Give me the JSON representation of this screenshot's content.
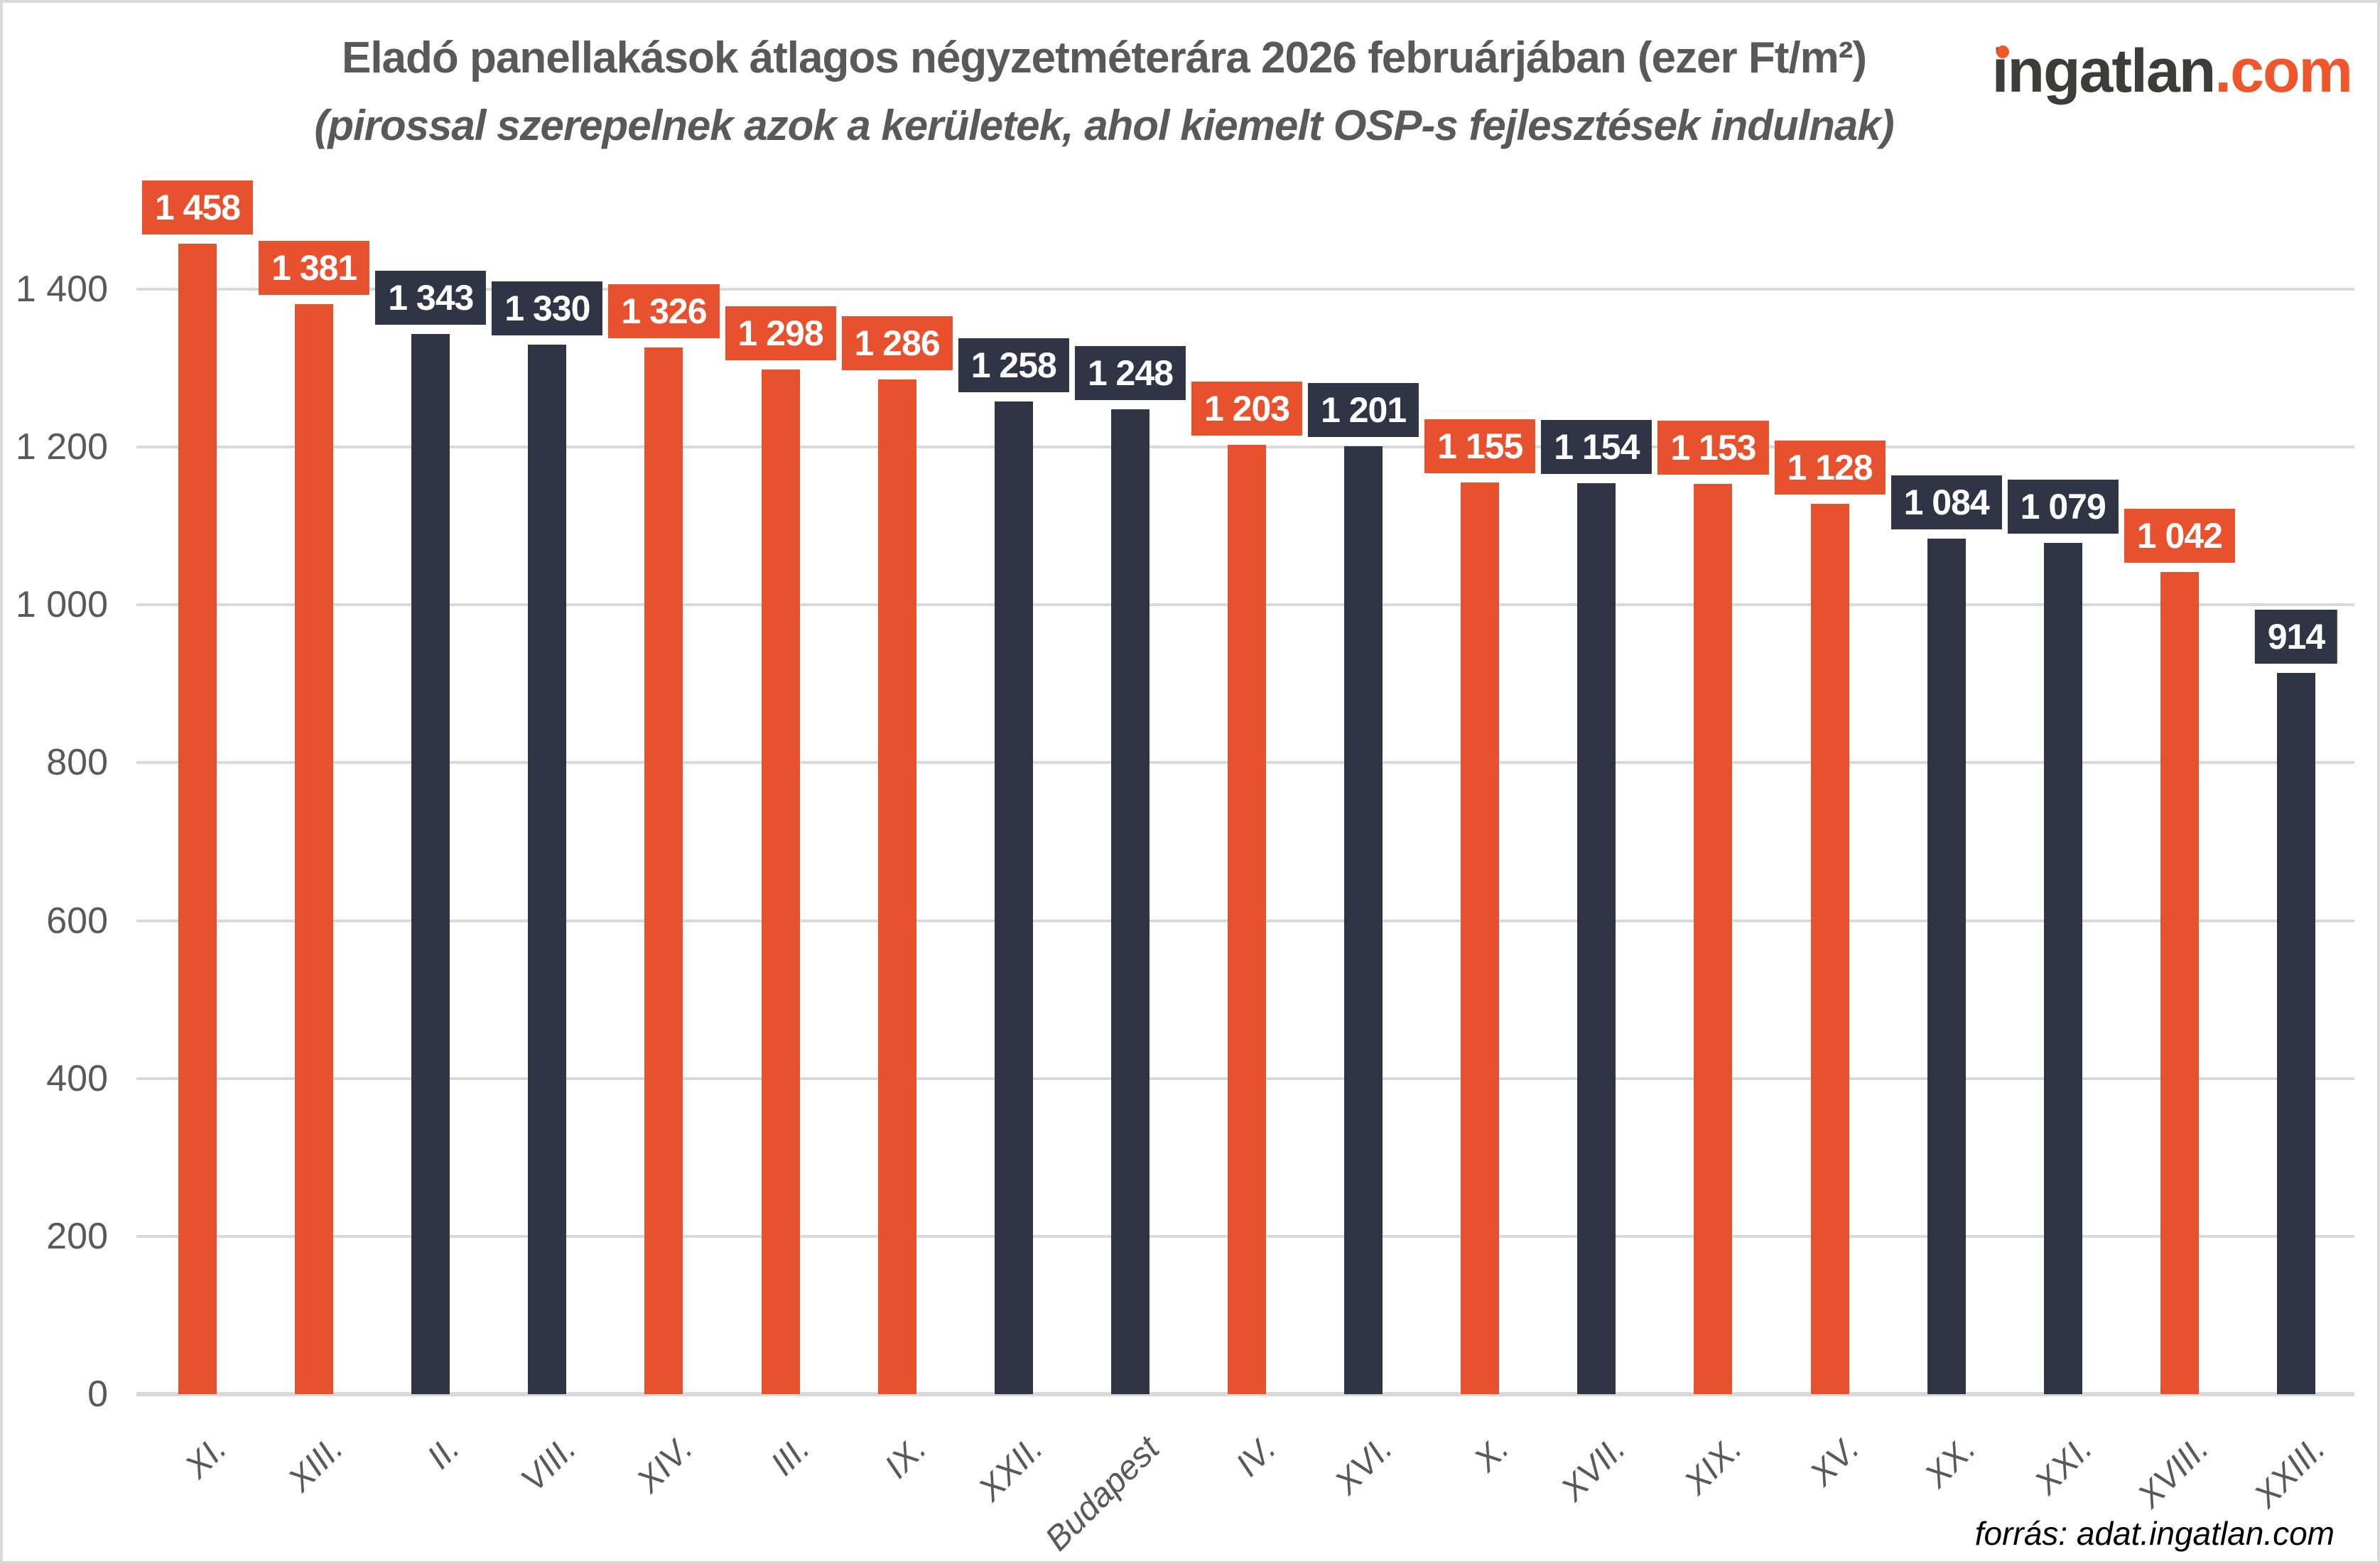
{
  "header": {
    "title": "Eladó panellakások átlagos négyzetméterára 2026 februárjában (ezer Ft/m²)",
    "subtitle": "(pirossal szerepelnek azok a kerületek, ahol kiemelt OSP-s fejlesztések indulnak)"
  },
  "logo": {
    "primary": "ingatlan",
    "suffix": ".com"
  },
  "source_note": "forrás: adat.ingatlan.com",
  "colors": {
    "highlight_red": "#E8512E",
    "dark_navy": "#2F3545",
    "gridline": "#D9D9D9",
    "frame": "#D9D9D9",
    "axis_text": "#595959",
    "title_text": "#595959",
    "value_label_text": "#FFFFFF",
    "source_text": "#000000",
    "logo_dark": "#3C3C3B",
    "logo_orange": "#F0562C"
  },
  "chart_data": {
    "type": "bar",
    "title": "Eladó panellakások átlagos négyzetméterára 2026 februárjában (ezer Ft/m²)",
    "subtitle": "(pirossal szerepelnek azok a kerületek, ahol kiemelt OSP-s fejlesztések indulnak)",
    "unit": "ezer Ft/m²",
    "categories": [
      "XI.",
      "XIII.",
      "II.",
      "VIII.",
      "XIV.",
      "III.",
      "IX.",
      "XXII.",
      "Budapest",
      "IV.",
      "XVI.",
      "X.",
      "XVII.",
      "XIX.",
      "XV.",
      "XX.",
      "XXI.",
      "XVIII.",
      "XXIII."
    ],
    "values": [
      1458,
      1381,
      1343,
      1330,
      1326,
      1298,
      1286,
      1258,
      1248,
      1203,
      1201,
      1155,
      1154,
      1153,
      1128,
      1084,
      1079,
      1042,
      914
    ],
    "value_labels": [
      "1 458",
      "1 381",
      "1 343",
      "1 330",
      "1 326",
      "1 298",
      "1 286",
      "1 258",
      "1 248",
      "1 203",
      "1 201",
      "1 155",
      "1 154",
      "1 153",
      "1 128",
      "1 084",
      "1 079",
      "1 042",
      "914"
    ],
    "highlighted": [
      true,
      true,
      false,
      false,
      true,
      true,
      true,
      false,
      false,
      true,
      false,
      true,
      false,
      true,
      true,
      false,
      false,
      true,
      false
    ],
    "highlight_meaning": "piros = kerületek, ahol kiemelt OSP-s fejlesztések indulnak",
    "xlabel": "",
    "ylabel": "",
    "ylim": [
      0,
      1400
    ],
    "ytick_interval": 200,
    "ytick_labels": [
      "0",
      "200",
      "400",
      "600",
      "800",
      "1 000",
      "1 200",
      "1 400"
    ],
    "grid": "horizontal",
    "legend": "none"
  }
}
